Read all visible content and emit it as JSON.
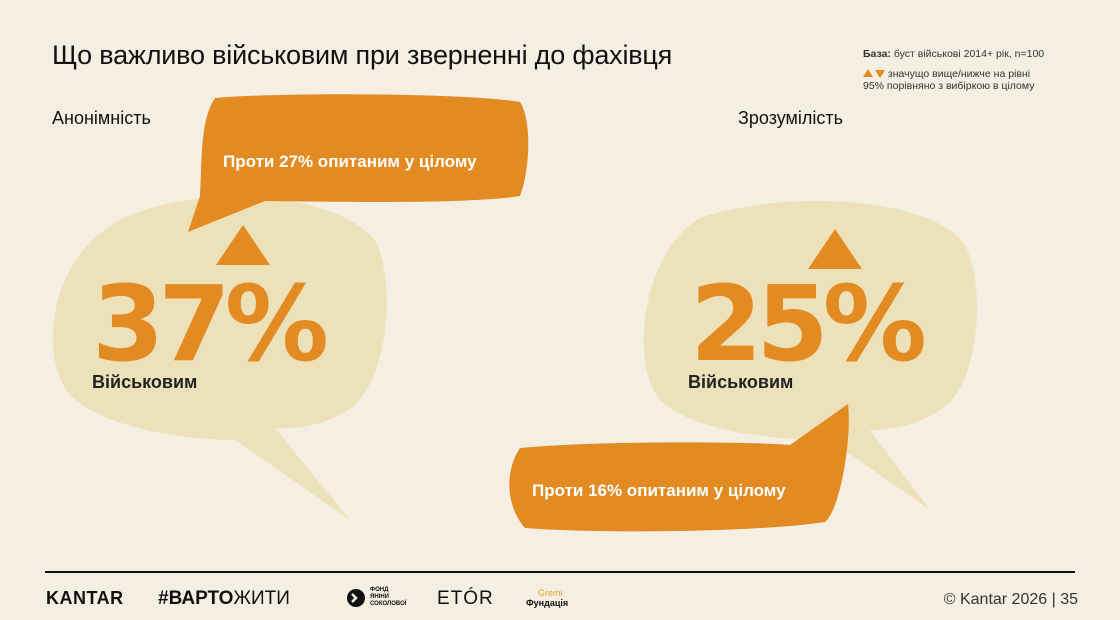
{
  "title": "Що важливо військовим при зверненні до фахівця",
  "base": {
    "label": "База:",
    "text": "буст військові 2014+ рік, n=100"
  },
  "legend": {
    "line1": "значущо вище/нижче на рівні",
    "line2": "95% порівняно з вибіркою в цілому"
  },
  "left": {
    "label": "Анонімність",
    "value": "37%",
    "sub": "Військовим",
    "callout": "Проти 27% опитаним у цілому",
    "indicator": "up"
  },
  "right": {
    "label": "Зрозумілість",
    "value": "25%",
    "sub": "Військовим",
    "callout": "Проти 16% опитаним у цілому",
    "indicator": "up"
  },
  "footer": {
    "kantar": "KANTAR",
    "varto_hash": "#",
    "varto_bold": "ВАРТО",
    "varto_rest": "ЖИТИ",
    "fond_small": "ФОНД",
    "fond_line1": "ЯНІНИ",
    "fond_line2": "СОКОЛОВОЇ",
    "etor": "ETÓR",
    "gremi_top": "Gremi",
    "gremi_bottom": "Фундація",
    "copyright": "© Kantar 2026 | 35"
  },
  "colors": {
    "accent": "#e38b23",
    "bubble": "#ede1b9",
    "background": "#f4efe2"
  }
}
